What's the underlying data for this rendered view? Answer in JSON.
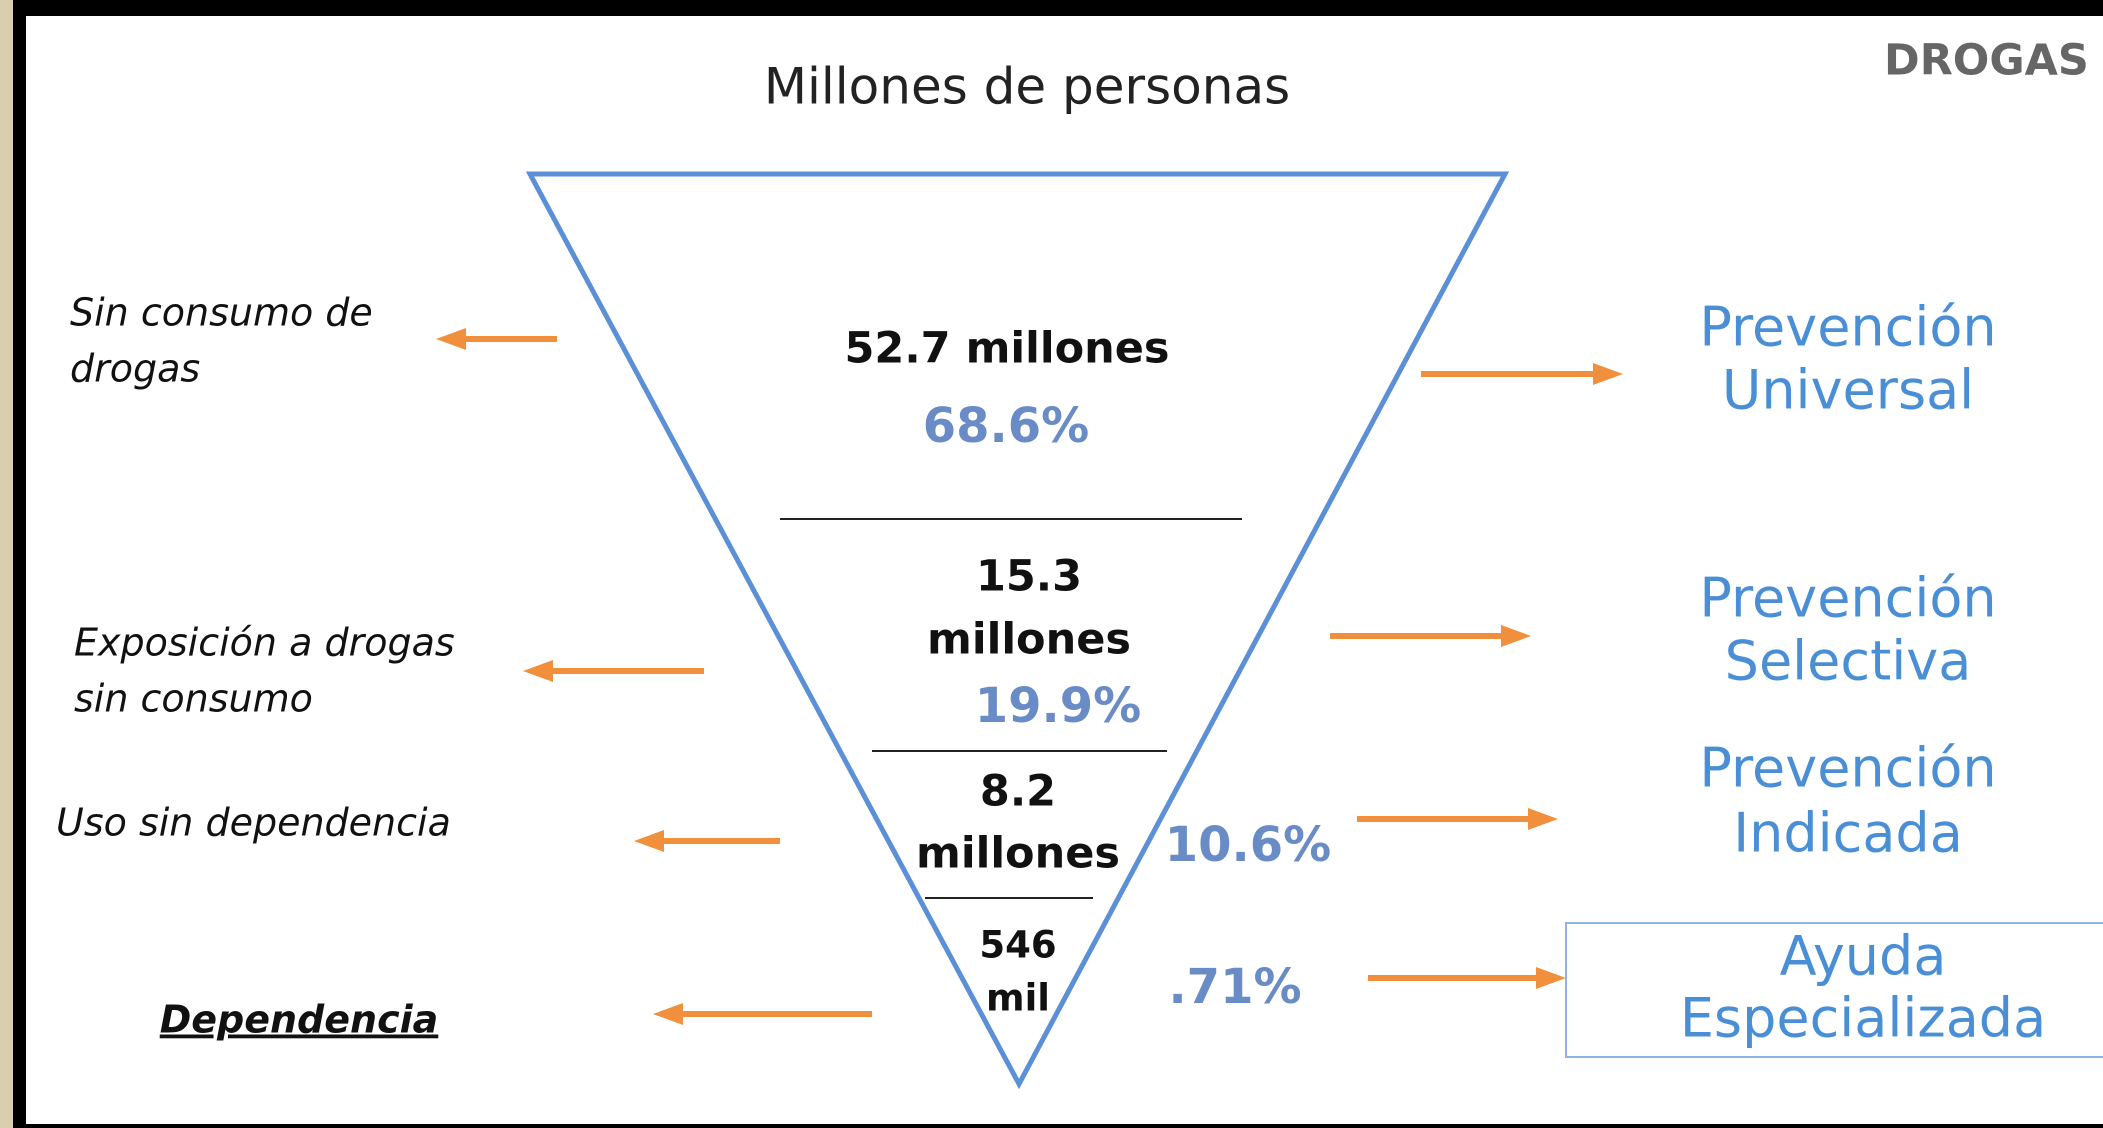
{
  "title": "Millones de personas",
  "corner": "DROGAS",
  "levels": [
    {
      "left": [
        "Sin consumo de",
        "drogas"
      ],
      "count": [
        "52.7 millones"
      ],
      "percent": "68.6%",
      "right": [
        "Prevención",
        "Universal"
      ]
    },
    {
      "left": [
        "Exposición a drogas",
        "sin consumo"
      ],
      "count": [
        "15.3",
        "millones"
      ],
      "percent": "19.9%",
      "right": [
        "Prevención",
        "Selectiva"
      ]
    },
    {
      "left": [
        "Uso sin dependencia"
      ],
      "count": [
        "8.2",
        "millones"
      ],
      "percent": "10.6%",
      "right": [
        "Prevención",
        "Indicada"
      ]
    },
    {
      "left": [
        "Dependencia"
      ],
      "count": [
        "546",
        "mil"
      ],
      "percent": ".71%",
      "right": [
        "Ayuda",
        "Especializada"
      ]
    }
  ]
}
